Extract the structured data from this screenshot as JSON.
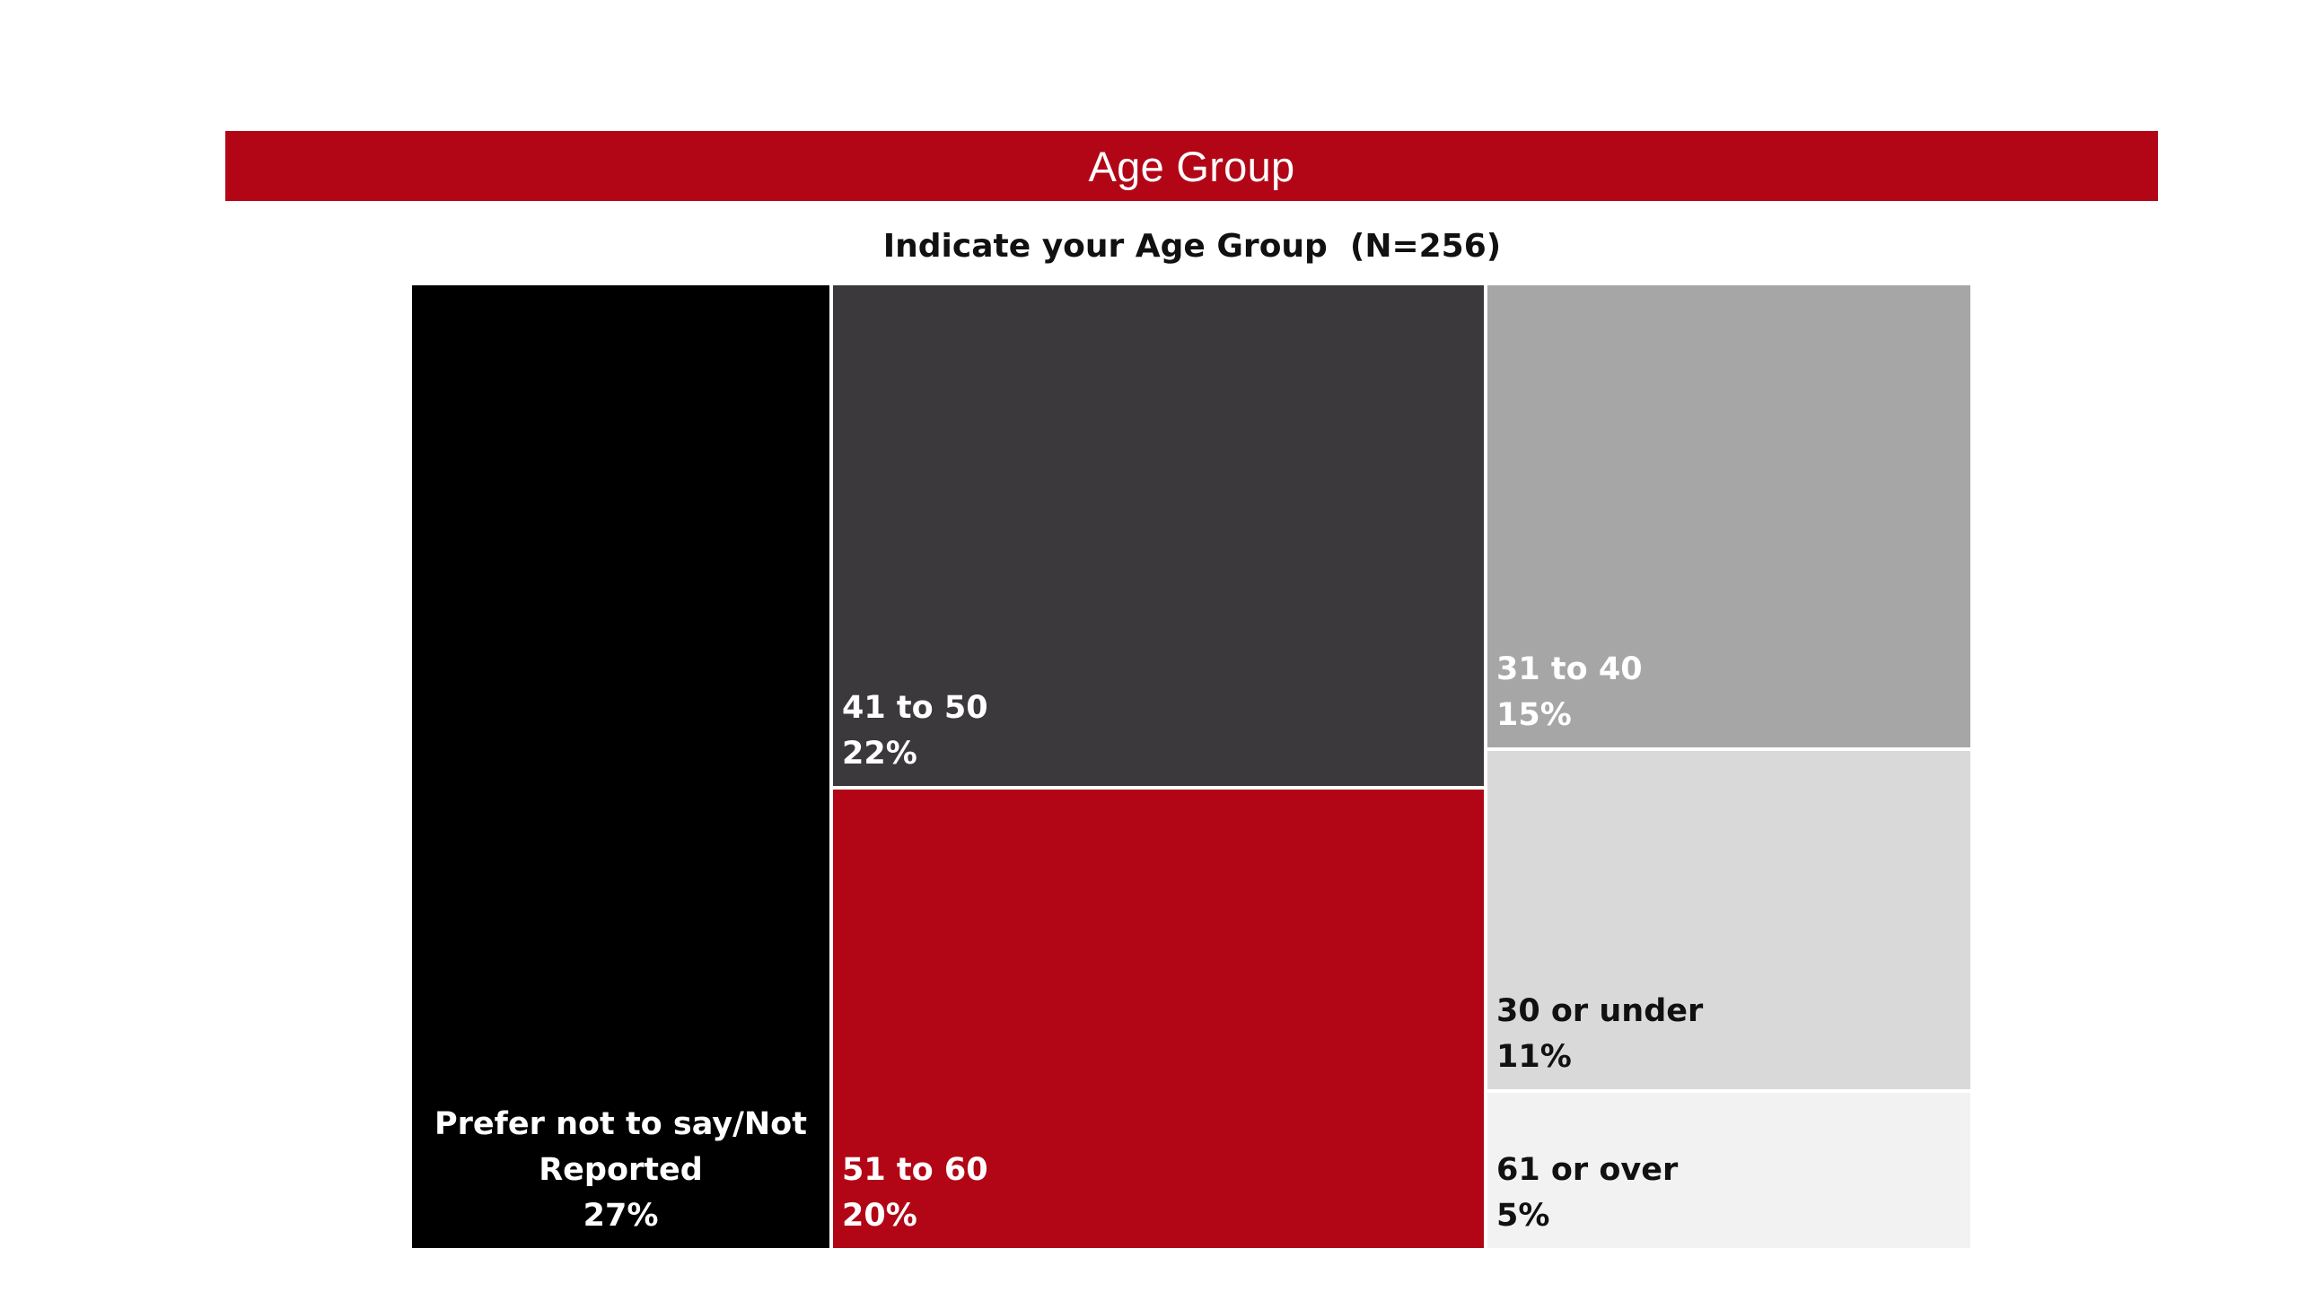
{
  "header": {
    "banner_title": "Age Group",
    "subtitle": "Indicate your Age Group  (N=256)"
  },
  "colors": {
    "banner": "#b20616",
    "divider": "#ffffff"
  },
  "chart_data": {
    "type": "treemap",
    "title": "Indicate your Age Group  (N=256)",
    "unit": "%",
    "items": [
      {
        "name": "Prefer not to say/Not Reported",
        "value": 27,
        "label_lines": [
          "Prefer not to say/Not",
          "Reported"
        ],
        "value_label": "27%",
        "color": "#000000",
        "text_color": "#ffffff",
        "align": "center"
      },
      {
        "name": "41 to 50",
        "value": 22,
        "label_lines": [
          "41 to 50"
        ],
        "value_label": "22%",
        "color": "#3b393b",
        "text_color": "#ffffff",
        "align": "left"
      },
      {
        "name": "51 to 60",
        "value": 20,
        "label_lines": [
          "51 to 60"
        ],
        "value_label": "20%",
        "color": "#b20616",
        "text_color": "#ffffff",
        "align": "left"
      },
      {
        "name": "31 to 40",
        "value": 15,
        "label_lines": [
          "31 to 40"
        ],
        "value_label": "15%",
        "color": "#a6a6a6",
        "text_color": "#ffffff",
        "align": "left"
      },
      {
        "name": "30 or under",
        "value": 11,
        "label_lines": [
          "30 or under"
        ],
        "value_label": "11%",
        "color": "#d9d9d9",
        "text_color": "#111111",
        "align": "left"
      },
      {
        "name": "61 or over",
        "value": 5,
        "label_lines": [
          "61 or over"
        ],
        "value_label": "5%",
        "color": "#f2f2f2",
        "text_color": "#111111",
        "align": "left"
      }
    ]
  }
}
